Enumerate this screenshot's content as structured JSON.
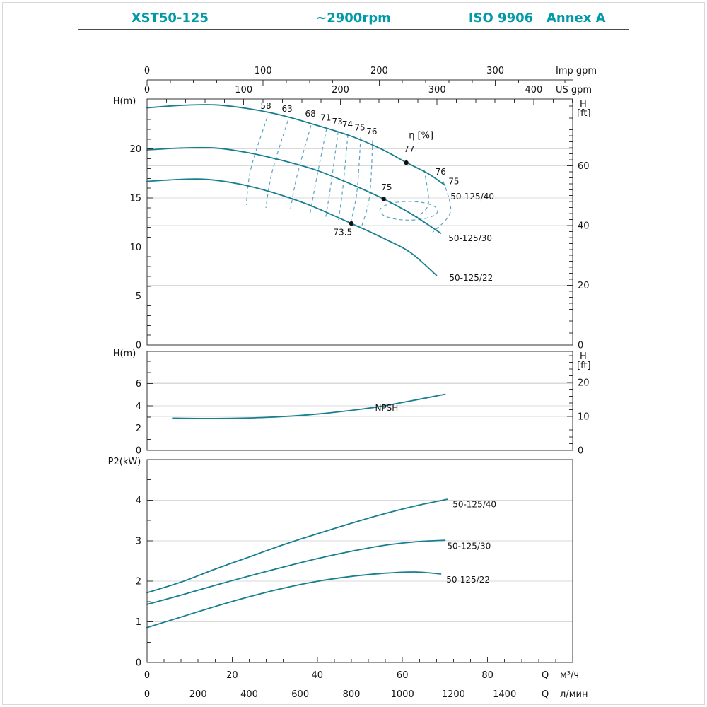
{
  "page": {
    "bg": "#ffffff",
    "border_color": "#d8d8d8"
  },
  "header": {
    "text_color": "#0099a8",
    "cells": [
      {
        "id": "model",
        "text": "XST50-125"
      },
      {
        "id": "speed",
        "text": "~2900rpm"
      },
      {
        "id": "standard",
        "text": "ISO 9906   Annex A"
      }
    ]
  },
  "colors": {
    "curve": "#177f8f",
    "contour": "#5aa5c5",
    "grid": "#dadada",
    "axis": "#333333",
    "dot": "#111111"
  },
  "chart_data": [
    {
      "id": "head",
      "type": "line",
      "xlim": [
        0,
        100
      ],
      "ylim": [
        0,
        25.1
      ],
      "ylabel_left": "H(m)",
      "left_ticks": [
        0,
        5,
        10,
        15,
        20
      ],
      "left_minor": 1,
      "right_label": [
        "H",
        "[ft]"
      ],
      "right_ticks_ft": [
        0,
        20,
        40,
        60
      ],
      "right_minor_ft": 2,
      "grid_left": [
        5,
        10,
        15,
        20
      ],
      "grid_ft": [
        20,
        40,
        60
      ],
      "top_axes": [
        {
          "name": "Imp gpm",
          "major": [
            0,
            100,
            200,
            300
          ],
          "minor_step": 20,
          "to_m3h": 0.27276
        },
        {
          "name": "US gpm",
          "major": [
            0,
            100,
            200,
            300,
            400
          ],
          "minor_step": 20,
          "to_m3h": 0.22712
        }
      ],
      "series": [
        {
          "name": "50-125/40",
          "label_at": [
            71.3,
            14.85
          ],
          "points": [
            [
              0,
              24.2
            ],
            [
              8,
              24.45
            ],
            [
              16,
              24.5
            ],
            [
              24,
              24.1
            ],
            [
              32,
              23.4
            ],
            [
              40,
              22.4
            ],
            [
              48,
              21.3
            ],
            [
              55,
              20.0
            ],
            [
              61,
              18.6
            ],
            [
              66,
              17.5
            ],
            [
              70,
              16.3
            ]
          ]
        },
        {
          "name": "50-125/30",
          "label_at": [
            70.8,
            10.6
          ],
          "points": [
            [
              0,
              19.9
            ],
            [
              8,
              20.1
            ],
            [
              16,
              20.1
            ],
            [
              24,
              19.6
            ],
            [
              32,
              18.8
            ],
            [
              40,
              17.8
            ],
            [
              48,
              16.4
            ],
            [
              55.6,
              14.9
            ],
            [
              62,
              13.4
            ],
            [
              69,
              11.4
            ]
          ]
        },
        {
          "name": "50-125/22",
          "label_at": [
            71.0,
            6.55
          ],
          "points": [
            [
              0,
              16.7
            ],
            [
              8,
              16.9
            ],
            [
              14,
              16.9
            ],
            [
              22,
              16.4
            ],
            [
              30,
              15.5
            ],
            [
              38,
              14.3
            ],
            [
              48,
              12.4
            ],
            [
              56,
              10.8
            ],
            [
              62,
              9.4
            ],
            [
              68,
              7.1
            ]
          ]
        }
      ],
      "bep": [
        {
          "label": "77",
          "dot": [
            60.9,
            18.6
          ],
          "label_at": [
            61.6,
            19.7
          ]
        },
        {
          "label": "75",
          "dot": [
            55.6,
            14.9
          ],
          "label_at": [
            56.3,
            15.8
          ]
        },
        {
          "label": "73.5",
          "dot": [
            48.0,
            12.4
          ],
          "label_at": [
            46.0,
            11.2
          ]
        }
      ],
      "eta_label": {
        "text": "η [%]",
        "at": [
          61.5,
          21.1
        ]
      },
      "contours": [
        {
          "label": "58",
          "label_at": [
            27.9,
            24.1
          ],
          "points": [
            [
              28.2,
              23.2
            ],
            [
              24.4,
              18.0
            ],
            [
              23.3,
              14.3
            ]
          ]
        },
        {
          "label": "63",
          "label_at": [
            32.9,
            23.8
          ],
          "points": [
            [
              33.1,
              22.9
            ],
            [
              29.4,
              17.7
            ],
            [
              27.9,
              14.0
            ]
          ]
        },
        {
          "label": "68",
          "label_at": [
            38.4,
            23.3
          ],
          "points": [
            [
              38.5,
              22.4
            ],
            [
              35.2,
              17.2
            ],
            [
              33.6,
              13.6
            ]
          ]
        },
        {
          "label": "71",
          "label_at": [
            42.0,
            22.9
          ],
          "points": [
            [
              42.2,
              22.1
            ],
            [
              39.7,
              16.7
            ],
            [
              38.2,
              13.2
            ]
          ]
        },
        {
          "label": "73",
          "label_at": [
            44.7,
            22.5
          ],
          "points": [
            [
              44.9,
              21.8
            ],
            [
              43.2,
              16.4
            ],
            [
              41.9,
              12.8
            ]
          ]
        },
        {
          "label": "74",
          "label_at": [
            47.1,
            22.2
          ],
          "points": [
            [
              47.2,
              21.5
            ],
            [
              46.0,
              16.0
            ],
            [
              44.9,
              12.5
            ]
          ]
        },
        {
          "label": "75",
          "label_at": [
            50.0,
            21.9
          ],
          "points": [
            [
              50.2,
              21.2
            ],
            [
              49.3,
              15.6
            ],
            [
              47.8,
              12.4
            ]
          ]
        },
        {
          "label": "76",
          "label_at": [
            52.8,
            21.5
          ],
          "points": [
            [
              53.0,
              20.9
            ],
            [
              52.3,
              15.2
            ],
            [
              50.5,
              12.2
            ]
          ]
        },
        {
          "label": "76",
          "label_at": [
            67.7,
            17.4
          ],
          "label_anchor": "start",
          "points": [
            [
              65.1,
              17.9
            ],
            [
              66.1,
              14.4
            ],
            [
              63.1,
              13.0
            ]
          ]
        },
        {
          "label": "75",
          "label_at": [
            70.8,
            16.4
          ],
          "label_anchor": "start",
          "points": [
            [
              69.6,
              16.7
            ],
            [
              71.3,
              13.6
            ],
            [
              67.1,
              11.5
            ]
          ]
        },
        {
          "label": "",
          "loop": [
            61.5,
            13.7,
            6.8,
            0.95
          ]
        }
      ]
    },
    {
      "id": "npsh",
      "type": "line",
      "xlim": [
        0,
        100
      ],
      "ylim": [
        0,
        8.9
      ],
      "ylabel_left": "H(m)",
      "left_ticks": [
        0,
        2,
        4,
        6
      ],
      "left_minor": 1,
      "right_label": [
        "H",
        "[ft]"
      ],
      "right_ticks_ft": [
        0,
        10,
        20
      ],
      "right_minor_ft": 2,
      "grid_left": [
        2,
        4,
        6
      ],
      "grid_ft": [
        10,
        20
      ],
      "series": [
        {
          "name": "NPSH",
          "label_at": [
            56.3,
            3.55
          ],
          "label_anchor": "middle",
          "points": [
            [
              6,
              2.9
            ],
            [
              14,
              2.87
            ],
            [
              22,
              2.9
            ],
            [
              30,
              3.0
            ],
            [
              38,
              3.2
            ],
            [
              46,
              3.5
            ],
            [
              54,
              3.9
            ],
            [
              62,
              4.45
            ],
            [
              70,
              5.05
            ]
          ]
        }
      ]
    },
    {
      "id": "power",
      "type": "line",
      "xlim": [
        0,
        100
      ],
      "ylim": [
        0,
        5
      ],
      "ylabel_left": "P2(kW)",
      "left_ticks": [
        0,
        1,
        2,
        3,
        4
      ],
      "left_minor": 0.5,
      "grid_left": [
        1,
        2,
        3,
        4
      ],
      "bottom_axes": [
        {
          "name": "Q",
          "unit": "м³/ч",
          "major": [
            0,
            20,
            40,
            60,
            80
          ],
          "minor_step": 4,
          "to_m3h": 1
        },
        {
          "name": "Q",
          "unit": "л/мин",
          "major": [
            0,
            200,
            400,
            600,
            800,
            1000,
            1200,
            1400
          ],
          "to_m3h": 0.06
        }
      ],
      "series": [
        {
          "name": "50-125/40",
          "label_at": [
            71.8,
            3.82
          ],
          "points": [
            [
              0,
              1.72
            ],
            [
              8,
              1.98
            ],
            [
              16,
              2.3
            ],
            [
              24,
              2.6
            ],
            [
              32,
              2.9
            ],
            [
              40,
              3.17
            ],
            [
              48,
              3.43
            ],
            [
              56,
              3.67
            ],
            [
              64,
              3.88
            ],
            [
              70.5,
              4.02
            ]
          ]
        },
        {
          "name": "50-125/30",
          "label_at": [
            70.5,
            2.8
          ],
          "points": [
            [
              0,
              1.43
            ],
            [
              8,
              1.66
            ],
            [
              16,
              1.9
            ],
            [
              24,
              2.13
            ],
            [
              32,
              2.35
            ],
            [
              40,
              2.56
            ],
            [
              48,
              2.74
            ],
            [
              56,
              2.89
            ],
            [
              64,
              2.98
            ],
            [
              70,
              3.01
            ]
          ]
        },
        {
          "name": "50-125/22",
          "label_at": [
            70.3,
            1.97
          ],
          "points": [
            [
              0,
              0.86
            ],
            [
              8,
              1.12
            ],
            [
              16,
              1.38
            ],
            [
              24,
              1.62
            ],
            [
              32,
              1.83
            ],
            [
              40,
              2.0
            ],
            [
              48,
              2.12
            ],
            [
              56,
              2.2
            ],
            [
              63,
              2.23
            ],
            [
              69,
              2.18
            ]
          ]
        }
      ]
    }
  ]
}
